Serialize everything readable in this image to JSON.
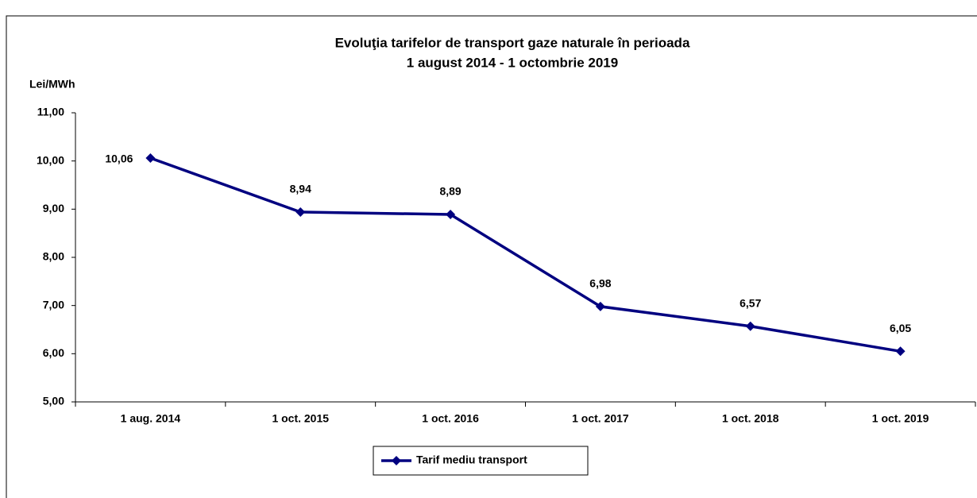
{
  "chart_data": {
    "type": "line",
    "title": [
      "Evoluţia tarifelor de transport gaze naturale în  perioada",
      "1 august 2014 -  1 octombrie 2019"
    ],
    "y_label": "Lei/MWh",
    "categories": [
      "1 aug. 2014",
      "1 oct. 2015",
      "1 oct. 2016",
      "1 oct. 2017",
      "1 oct. 2018",
      "1 oct. 2019"
    ],
    "series": [
      {
        "name": "Tarif mediu transport",
        "color": "#000080",
        "values": [
          10.06,
          8.94,
          8.89,
          6.98,
          6.57,
          6.05
        ],
        "value_labels": [
          "10,06",
          "8,94",
          "8,89",
          "6,98",
          "6,57",
          "6,05"
        ]
      }
    ],
    "ylim": [
      5,
      11
    ],
    "yticks": [
      {
        "value": 5,
        "label": "5,00"
      },
      {
        "value": 6,
        "label": "6,00"
      },
      {
        "value": 7,
        "label": "7,00"
      },
      {
        "value": 8,
        "label": "8,00"
      },
      {
        "value": 9,
        "label": "9,00"
      },
      {
        "value": 10,
        "label": "10,00"
      },
      {
        "value": 11,
        "label": "11,00"
      }
    ],
    "legend": "bottom"
  }
}
